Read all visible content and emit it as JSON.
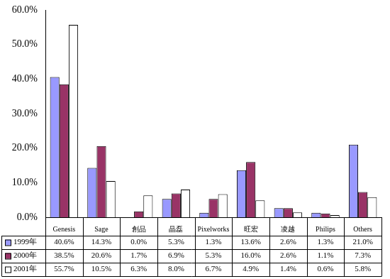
{
  "chart_data": {
    "type": "bar",
    "categories": [
      "Genesis",
      "Sage",
      "創品",
      "晶磊",
      "Pixelworks",
      "旺宏",
      "凌越",
      "Philips",
      "Others"
    ],
    "series": [
      {
        "name": "1999年",
        "color": "#9999ff",
        "values": [
          40.6,
          14.3,
          0.0,
          5.3,
          1.3,
          13.6,
          2.6,
          1.3,
          21.0
        ],
        "value_labels": [
          "40.6%",
          "14.3%",
          "0.0%",
          "5.3%",
          "1.3%",
          "13.6%",
          "2.6%",
          "1.3%",
          "21.0%"
        ]
      },
      {
        "name": "2000年",
        "color": "#993366",
        "values": [
          38.5,
          20.6,
          1.7,
          6.9,
          5.3,
          16.0,
          2.6,
          1.1,
          7.3
        ],
        "value_labels": [
          "38.5%",
          "20.6%",
          "1.7%",
          "6.9%",
          "5.3%",
          "16.0%",
          "2.6%",
          "1.1%",
          "7.3%"
        ]
      },
      {
        "name": "2001年",
        "color": "#ffffff",
        "values": [
          55.7,
          10.5,
          6.3,
          8.0,
          6.7,
          4.9,
          1.4,
          0.6,
          5.8
        ],
        "value_labels": [
          "55.7%",
          "10.5%",
          "6.3%",
          "8.0%",
          "6.7%",
          "4.9%",
          "1.4%",
          "0.6%",
          "5.8%"
        ]
      }
    ],
    "ylim": [
      0,
      60
    ],
    "yticks": [
      {
        "value": 0,
        "label": "0.0%"
      },
      {
        "value": 10,
        "label": "10.0%"
      },
      {
        "value": 20,
        "label": "20.0%"
      },
      {
        "value": 30,
        "label": "30.0%"
      },
      {
        "value": 40,
        "label": "40.0%"
      },
      {
        "value": 50,
        "label": "50.0%"
      },
      {
        "value": 60,
        "label": "60.0%"
      }
    ],
    "grid": false
  }
}
